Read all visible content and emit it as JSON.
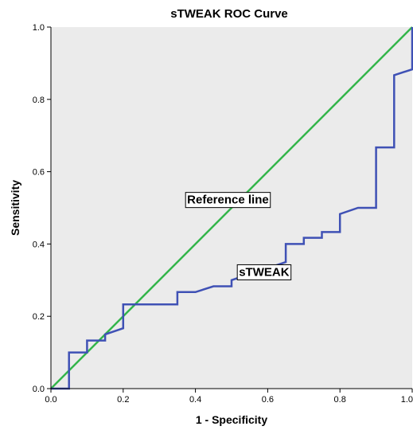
{
  "chart_data": {
    "type": "line",
    "title": "sTWEAK ROC Curve",
    "xlabel": "1 - Specificity",
    "ylabel": "Sensitivity",
    "xlim": [
      0,
      1
    ],
    "ylim": [
      0,
      1
    ],
    "xticks": [
      "0.0",
      "0.2",
      "0.4",
      "0.6",
      "0.8",
      "1.0"
    ],
    "yticks": [
      "0.0",
      "0.2",
      "0.4",
      "0.6",
      "0.8",
      "1.0"
    ],
    "grid": false,
    "background_color": "#EBEBEB",
    "series": [
      {
        "name": "sTWEAK",
        "color": "#3F51B5",
        "points": [
          [
            0.0,
            0.0
          ],
          [
            0.05,
            0.0
          ],
          [
            0.05,
            0.1
          ],
          [
            0.1,
            0.1
          ],
          [
            0.1,
            0.133
          ],
          [
            0.15,
            0.133
          ],
          [
            0.15,
            0.15
          ],
          [
            0.2,
            0.167
          ],
          [
            0.2,
            0.233
          ],
          [
            0.35,
            0.233
          ],
          [
            0.35,
            0.267
          ],
          [
            0.4,
            0.267
          ],
          [
            0.45,
            0.283
          ],
          [
            0.5,
            0.283
          ],
          [
            0.5,
            0.3
          ],
          [
            0.55,
            0.317
          ],
          [
            0.6,
            0.333
          ],
          [
            0.65,
            0.35
          ],
          [
            0.65,
            0.4
          ],
          [
            0.7,
            0.4
          ],
          [
            0.7,
            0.417
          ],
          [
            0.75,
            0.417
          ],
          [
            0.75,
            0.433
          ],
          [
            0.8,
            0.433
          ],
          [
            0.8,
            0.483
          ],
          [
            0.85,
            0.5
          ],
          [
            0.9,
            0.5
          ],
          [
            0.9,
            0.667
          ],
          [
            0.95,
            0.667
          ],
          [
            0.95,
            0.867
          ],
          [
            1.0,
            0.883
          ],
          [
            1.0,
            1.0
          ]
        ]
      },
      {
        "name": "Reference line",
        "color": "#33B54A",
        "points": [
          [
            0,
            0
          ],
          [
            1,
            1
          ]
        ]
      }
    ],
    "annotations": [
      {
        "text": "Reference line",
        "x": 0.49,
        "y": 0.525
      },
      {
        "text": "sTWEAK",
        "x": 0.59,
        "y": 0.325
      }
    ]
  }
}
